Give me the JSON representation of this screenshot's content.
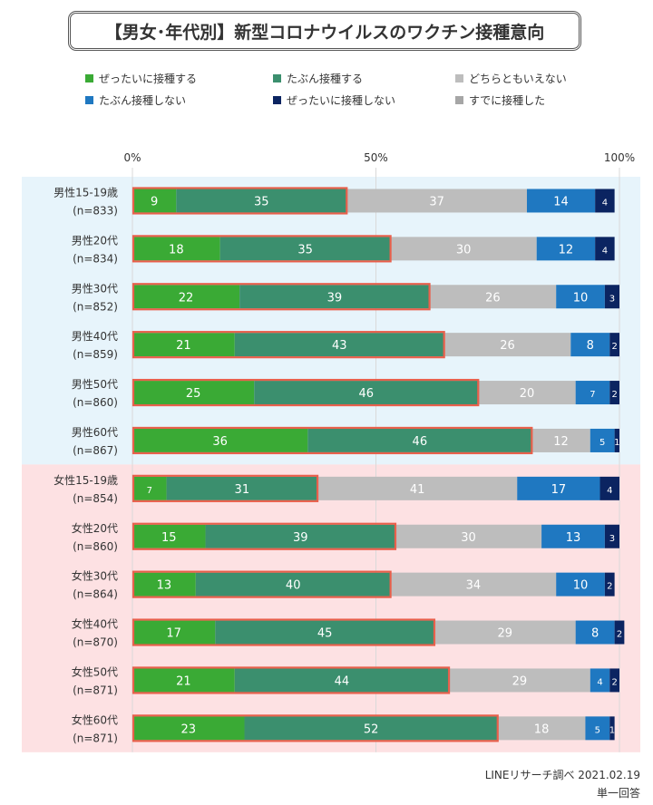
{
  "title": "【男女･年代別】新型コロナウイルスのワクチン接種意向",
  "footer": {
    "source": "LINEリサーチ調べ 2021.02.19",
    "note": "単一回答"
  },
  "chart_data": {
    "type": "bar",
    "orientation": "horizontal",
    "stacked": true,
    "normalized_percent": true,
    "title": "【男女･年代別】新型コロナウイルスのワクチン接種意向",
    "xlim": [
      0,
      100
    ],
    "x_ticks": [
      "0%",
      "50%",
      "100%"
    ],
    "legend_position": "top",
    "categories": [
      {
        "label": "男性15-19歳",
        "n": "(n=833)",
        "group": "male"
      },
      {
        "label": "男性20代",
        "n": "(n=834)",
        "group": "male"
      },
      {
        "label": "男性30代",
        "n": "(n=852)",
        "group": "male"
      },
      {
        "label": "男性40代",
        "n": "(n=859)",
        "group": "male"
      },
      {
        "label": "男性50代",
        "n": "(n=860)",
        "group": "male"
      },
      {
        "label": "男性60代",
        "n": "(n=867)",
        "group": "male"
      },
      {
        "label": "女性15-19歳",
        "n": "(n=854)",
        "group": "female"
      },
      {
        "label": "女性20代",
        "n": "(n=860)",
        "group": "female"
      },
      {
        "label": "女性30代",
        "n": "(n=864)",
        "group": "female"
      },
      {
        "label": "女性40代",
        "n": "(n=870)",
        "group": "female"
      },
      {
        "label": "女性50代",
        "n": "(n=871)",
        "group": "female"
      },
      {
        "label": "女性60代",
        "n": "(n=871)",
        "group": "female"
      }
    ],
    "series": [
      {
        "name": "ぜったいに接種する",
        "color": "#3aaa35",
        "label_color": "#ffffff",
        "values": [
          9,
          18,
          22,
          21,
          25,
          36,
          7,
          15,
          13,
          17,
          21,
          23
        ]
      },
      {
        "name": "たぶん接種する",
        "color": "#3b8f6e",
        "label_color": "#ffffff",
        "values": [
          35,
          35,
          39,
          43,
          46,
          46,
          31,
          39,
          40,
          45,
          44,
          52
        ]
      },
      {
        "name": "どちらともいえない",
        "color": "#bdbdbd",
        "label_color": "#ffffff",
        "values": [
          37,
          30,
          26,
          26,
          20,
          12,
          41,
          30,
          34,
          29,
          29,
          18
        ]
      },
      {
        "name": "たぶん接種しない",
        "color": "#1f78c1",
        "label_color": "#ffffff",
        "values": [
          14,
          12,
          10,
          8,
          7,
          5,
          17,
          13,
          10,
          8,
          4,
          5
        ]
      },
      {
        "name": "ぜったいに接種しない",
        "color": "#0b2461",
        "label_color": "#ffffff",
        "values": [
          4,
          4,
          3,
          2,
          2,
          1,
          4,
          3,
          2,
          2,
          2,
          1
        ]
      },
      {
        "name": "すでに接種した",
        "color": "#a6a6a6",
        "label_color": "#ffffff",
        "values": [
          0,
          0,
          0,
          0,
          0,
          0,
          0,
          0,
          0,
          0,
          0,
          0
        ]
      }
    ],
    "highlight": {
      "series_indices": [
        0,
        1
      ],
      "color": "#e8604c"
    },
    "group_colors": {
      "male": "#e7f4fb",
      "female": "#fde1e3"
    }
  }
}
